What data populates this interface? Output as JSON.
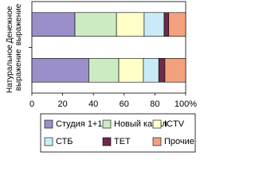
{
  "chart_data": {
    "type": "stacked_barh",
    "categories": [
      "Денежное выражение",
      "Натуральное выражение"
    ],
    "series": [
      {
        "name": "Студия 1+1",
        "color": "#9a8fc9",
        "values": [
          28,
          37
        ]
      },
      {
        "name": "Новый канал",
        "color": "#cdebc3",
        "values": [
          27,
          19.5
        ]
      },
      {
        "name": "ICTV",
        "color": "#ffffc8",
        "values": [
          18,
          16
        ]
      },
      {
        "name": "СТБ",
        "color": "#c9ebf7",
        "values": [
          13,
          10
        ]
      },
      {
        "name": "ТЕТ",
        "color": "#6e2a4a",
        "values": [
          3,
          4
        ]
      },
      {
        "name": "Прочие",
        "color": "#f3a07c",
        "values": [
          11,
          13.5
        ]
      }
    ],
    "xlim": [
      0,
      100
    ],
    "xticks": [
      0,
      20,
      40,
      60,
      80,
      {
        "value": 100,
        "label": "100%"
      }
    ],
    "grid": false
  }
}
